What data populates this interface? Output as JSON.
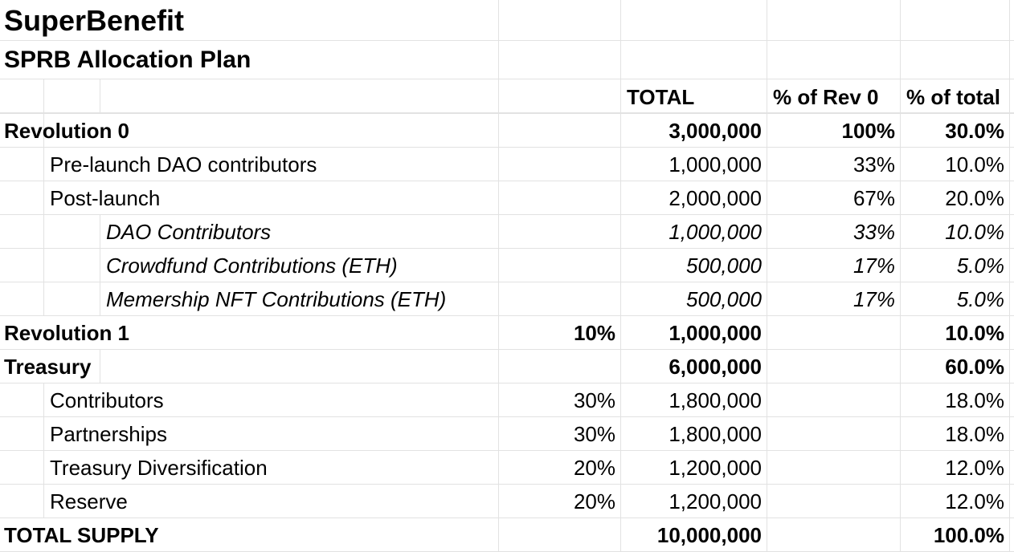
{
  "title": "SuperBenefit",
  "subtitle": "SPRB Allocation Plan",
  "headers": {
    "total": "TOTAL",
    "pct_rev0": "% of Rev 0",
    "pct_total": "% of total"
  },
  "rows": [
    {
      "label": "Revolution 0",
      "pct": "",
      "total": "3,000,000",
      "pct_rev0": "100%",
      "pct_total": "30.0%"
    },
    {
      "label": "Pre-launch DAO contributors",
      "pct": "",
      "total": "1,000,000",
      "pct_rev0": "33%",
      "pct_total": "10.0%"
    },
    {
      "label": "Post-launch",
      "pct": "",
      "total": "2,000,000",
      "pct_rev0": "67%",
      "pct_total": "20.0%"
    },
    {
      "label": "DAO Contributors",
      "pct": "",
      "total": "1,000,000",
      "pct_rev0": "33%",
      "pct_total": "10.0%"
    },
    {
      "label": "Crowdfund Contributions (ETH)",
      "pct": "",
      "total": "500,000",
      "pct_rev0": "17%",
      "pct_total": "5.0%"
    },
    {
      "label": "Memership NFT Contributions (ETH)",
      "pct": "",
      "total": "500,000",
      "pct_rev0": "17%",
      "pct_total": "5.0%"
    },
    {
      "label": "Revolution 1",
      "pct": "10%",
      "total": "1,000,000",
      "pct_rev0": "",
      "pct_total": "10.0%"
    },
    {
      "label": "Treasury",
      "pct": "",
      "total": "6,000,000",
      "pct_rev0": "",
      "pct_total": "60.0%"
    },
    {
      "label": "Contributors",
      "pct": "30%",
      "total": "1,800,000",
      "pct_rev0": "",
      "pct_total": "18.0%"
    },
    {
      "label": "Partnerships",
      "pct": "30%",
      "total": "1,800,000",
      "pct_rev0": "",
      "pct_total": "18.0%"
    },
    {
      "label": "Treasury Diversification",
      "pct": "20%",
      "total": "1,200,000",
      "pct_rev0": "",
      "pct_total": "12.0%"
    },
    {
      "label": "Reserve",
      "pct": "20%",
      "total": "1,200,000",
      "pct_rev0": "",
      "pct_total": "12.0%"
    },
    {
      "label": "TOTAL SUPPLY",
      "pct": "",
      "total": "10,000,000",
      "pct_rev0": "",
      "pct_total": "100.0%"
    }
  ]
}
